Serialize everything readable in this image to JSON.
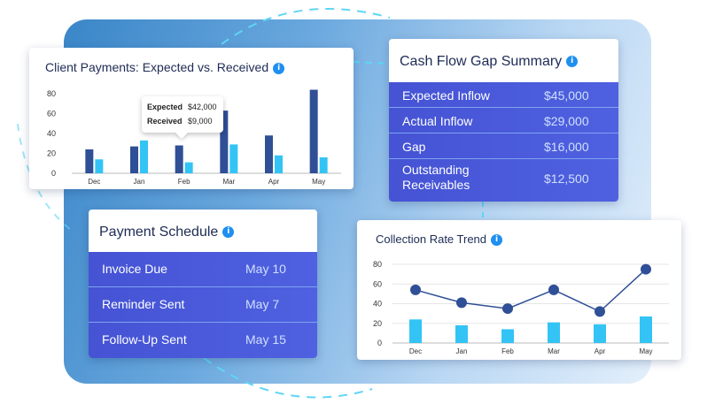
{
  "client_payments": {
    "title": "Client Payments: Expected vs. Received",
    "tooltip": {
      "expected_label": "Expected",
      "expected_value": "$42,000",
      "received_label": "Received",
      "received_value": "$9,000"
    },
    "chart_data": {
      "type": "bar",
      "categories": [
        "Dec",
        "Jan",
        "Feb",
        "Mar",
        "Apr",
        "May"
      ],
      "series": [
        {
          "values": [
            24,
            27,
            28,
            63,
            38,
            84
          ],
          "color": "#2f4f96"
        },
        {
          "values": [
            14,
            33,
            11,
            29,
            18,
            16
          ],
          "color": "#33c4f5"
        }
      ],
      "ylim": [
        0,
        80
      ],
      "yticks": [
        0,
        20,
        40,
        60,
        80
      ]
    }
  },
  "cash_flow": {
    "title": "Cash Flow Gap Summary",
    "rows": [
      {
        "label": "Expected Inflow",
        "value": "$45,000"
      },
      {
        "label": "Actual Inflow",
        "value": "$29,000"
      },
      {
        "label": "Gap",
        "value": "$16,000"
      },
      {
        "label": "Outstanding Receivables",
        "value": "$12,500"
      }
    ]
  },
  "schedule": {
    "title": "Payment Schedule",
    "rows": [
      {
        "label": "Invoice Due",
        "value": "May 10"
      },
      {
        "label": "Reminder Sent",
        "value": "May 7"
      },
      {
        "label": "Follow-Up Sent",
        "value": "May 15"
      }
    ]
  },
  "collection": {
    "title": "Collection Rate Trend",
    "chart_data": {
      "type": "line",
      "x": [
        "Dec",
        "Jan",
        "Feb",
        "Mar",
        "Apr",
        "May"
      ],
      "series": [
        {
          "type": "line",
          "values": [
            54,
            41,
            35,
            54,
            32,
            75
          ],
          "color": "#2f4f96"
        },
        {
          "type": "bar",
          "values": [
            24,
            18,
            14,
            21,
            19,
            27
          ],
          "color": "#33c4f5"
        }
      ],
      "ylim": [
        0,
        80
      ],
      "yticks": [
        0,
        20,
        40,
        60,
        80
      ]
    }
  },
  "colors": {
    "accent": "#1f8ff0",
    "panel_blue": "#4a56d9"
  }
}
